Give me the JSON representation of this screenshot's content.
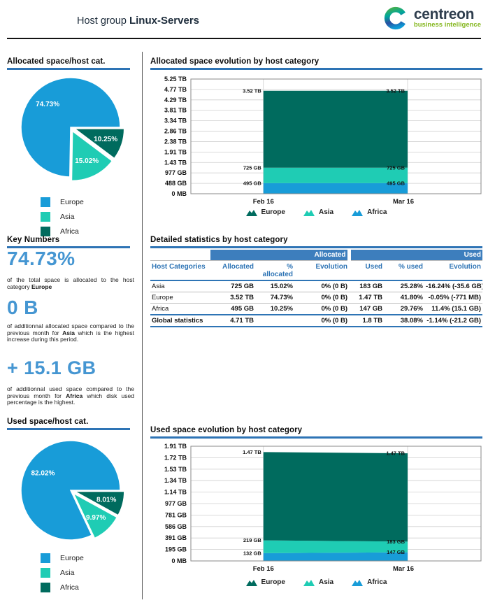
{
  "header": {
    "title_prefix": "Host group",
    "title_bold": "Linux-Servers",
    "logo": {
      "brand": "centreon",
      "tagline": "business intelligence"
    }
  },
  "colors": {
    "accent_blue": "#2e74b5",
    "key_number_blue": "#4596d2",
    "table_group_header_bg": "#3d7ebd",
    "europe_pie": "#189cd8",
    "asia": "#1fccb4",
    "africa_pie": "#006b5e"
  },
  "key_numbers": {
    "title": "Key Numbers",
    "items": [
      {
        "value": "74.73%",
        "pre": "of the total space is allocated to the host category ",
        "bold": "Europe",
        "post": ""
      },
      {
        "value": "0 B",
        "pre": "of additionnal allocated space compared to the previous month for ",
        "bold": "Asia",
        "post": " which is the highest increase during this period."
      },
      {
        "value": "+ 15.1 GB",
        "pre": "of additionnal used space compared to the previous month for ",
        "bold": "Africa",
        "post": " which disk used percentage is the highest."
      }
    ]
  },
  "chart_data": [
    {
      "id": "allocated_pie",
      "type": "pie",
      "title": "Allocated space/host cat.",
      "slices": [
        {
          "name": "Europe",
          "pct": 74.73,
          "label": "74.73%",
          "color": "#189cd8"
        },
        {
          "name": "Asia",
          "pct": 15.02,
          "label": "15.02%",
          "color": "#1fccb4"
        },
        {
          "name": "Africa",
          "pct": 10.25,
          "label": "10.25%",
          "color": "#006b5e"
        }
      ],
      "legend_position": "bottom"
    },
    {
      "id": "allocated_evolution",
      "type": "area",
      "title": "Allocated space evolution by host category",
      "y_ticks": [
        "5.25 TB",
        "4.77 TB",
        "4.29 TB",
        "3.81 TB",
        "3.34 TB",
        "2.86 TB",
        "2.38 TB",
        "1.91 TB",
        "1.43 TB",
        "977 GB",
        "488 GB",
        "0 MB"
      ],
      "y_max_gb": 5375,
      "x_labels": [
        "Feb 16",
        "Mar 16"
      ],
      "grid": true,
      "legend_position": "bottom",
      "series": [
        {
          "name": "Europe",
          "color": "#006b5e",
          "values_gb": [
            3604,
            3604
          ],
          "labels": [
            "3.52 TB",
            "3.52 TB"
          ]
        },
        {
          "name": "Asia",
          "color": "#1fccb4",
          "values_gb": [
            725,
            725
          ],
          "labels": [
            "725 GB",
            "725 GB"
          ]
        },
        {
          "name": "Africa",
          "color": "#189cd8",
          "values_gb": [
            495,
            495
          ],
          "labels": [
            "495 GB",
            "495 GB"
          ]
        }
      ]
    },
    {
      "id": "used_pie",
      "type": "pie",
      "title": "Used space/host cat.",
      "slices": [
        {
          "name": "Europe",
          "pct": 82.02,
          "label": "82.02%",
          "color": "#189cd8"
        },
        {
          "name": "Asia",
          "pct": 9.97,
          "label": "9.97%",
          "color": "#1fccb4"
        },
        {
          "name": "Africa",
          "pct": 8.01,
          "label": "8.01%",
          "color": "#006b5e"
        }
      ],
      "legend_position": "bottom"
    },
    {
      "id": "used_evolution",
      "type": "area",
      "title": "Used space evolution by host category",
      "y_ticks": [
        "1.91 TB",
        "1.72 TB",
        "1.53 TB",
        "1.34 TB",
        "1.14 TB",
        "977 GB",
        "781 GB",
        "586 GB",
        "391 GB",
        "195 GB",
        "0 MB"
      ],
      "y_max_gb": 1956,
      "x_labels": [
        "Feb 16",
        "Mar 16"
      ],
      "grid": true,
      "legend_position": "bottom",
      "series": [
        {
          "name": "Europe",
          "color": "#006b5e",
          "values_gb": [
            1505,
            1505
          ],
          "labels": [
            "1.47 TB",
            "1.47 TB"
          ]
        },
        {
          "name": "Asia",
          "color": "#1fccb4",
          "values_gb": [
            219,
            183
          ],
          "labels": [
            "219 GB",
            "183 GB"
          ]
        },
        {
          "name": "Africa",
          "color": "#189cd8",
          "values_gb": [
            132,
            147
          ],
          "labels": [
            "132 GB",
            "147 GB"
          ]
        }
      ]
    }
  ],
  "table": {
    "title": "Detailed statistics by host category",
    "group_headers": [
      "Allocated",
      "Used"
    ],
    "columns": [
      "Host Categories",
      "Allocated",
      "% allocated",
      "Evolution",
      "Used",
      "% used",
      "Evolution"
    ],
    "rows": [
      [
        "Asia",
        "725 GB",
        "15.02%",
        "0% (0 B)",
        "183 GB",
        "25.28%",
        "-16.24% (-35.6 GB)"
      ],
      [
        "Europe",
        "3.52 TB",
        "74.73%",
        "0% (0 B)",
        "1.47 TB",
        "41.80%",
        "-0.05% (-771 MB)"
      ],
      [
        "Africa",
        "495 GB",
        "10.25%",
        "0% (0 B)",
        "147 GB",
        "29.76%",
        "11.4% (15.1 GB)"
      ]
    ],
    "footer": [
      "Global statistics",
      "4.71 TB",
      "",
      "0% (0 B)",
      "1.8 TB",
      "38.08%",
      "-1.14% (-21.2 GB)"
    ]
  }
}
